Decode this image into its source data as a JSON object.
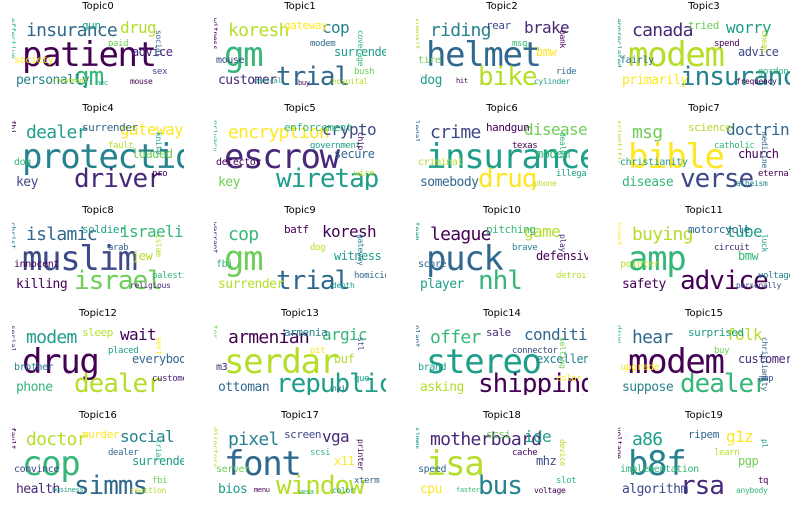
{
  "colors": [
    "#440154",
    "#482878",
    "#3e4989",
    "#31688e",
    "#26828e",
    "#1f9e89",
    "#35b779",
    "#6ece58",
    "#b5de2b",
    "#fde725"
  ],
  "topics": [
    {
      "title": "Topic0",
      "words": [
        "patient",
        "gm",
        "insurance",
        "drug",
        "personally",
        "advice",
        "gun",
        "society",
        "sex",
        "paid",
        "social",
        "effective",
        "mouse",
        "treatment",
        "nec"
      ]
    },
    {
      "title": "Topic1",
      "words": [
        "gm",
        "trial",
        "koresh",
        "cop",
        "customer",
        "surrender",
        "gateway",
        "mouse",
        "bush",
        "modem",
        "coverage",
        "witness",
        "hospital",
        "medical",
        "buy"
      ]
    },
    {
      "title": "Topic2",
      "words": [
        "helmet",
        "bike",
        "riding",
        "brake",
        "dog",
        "bmw",
        "rear",
        "tire",
        "ride",
        "msg",
        "bank",
        "sumgait",
        "cylinder",
        "hit"
      ]
    },
    {
      "title": "Topic3",
      "words": [
        "modem",
        "insurance",
        "canada",
        "worry",
        "primarily",
        "advice",
        "tried",
        "fairly",
        "gordon",
        "spend",
        "cheap",
        "appreciated",
        "frequency"
      ]
    },
    {
      "title": "Topic4",
      "words": [
        "protection",
        "driver",
        "dealer",
        "gateway",
        "key",
        "loaded",
        "surrender",
        "dog",
        "pro",
        "fault",
        "knife",
        "fbi"
      ]
    },
    {
      "title": "Topic5",
      "words": [
        "escrow",
        "wiretap",
        "encryption",
        "crypto",
        "key",
        "secure",
        "enforcement",
        "detector",
        "wire",
        "government",
        "chip",
        "privacy"
      ]
    },
    {
      "title": "Topic6",
      "words": [
        "insurance",
        "drug",
        "crime",
        "disease",
        "somebody",
        "modem",
        "handgun",
        "criminal",
        "illegal",
        "texas",
        "dealer",
        "legal",
        "phone"
      ]
    },
    {
      "title": "Topic7",
      "words": [
        "bible",
        "verse",
        "msg",
        "doctrine",
        "disease",
        "church",
        "science",
        "christianity",
        "eternal",
        "catholic",
        "medicine",
        "scientific",
        "atheism"
      ]
    },
    {
      "title": "Topic8",
      "words": [
        "muslim",
        "israel",
        "islamic",
        "israeli",
        "killing",
        "jew",
        "soldier",
        "innocent",
        "palestinian",
        "arab",
        "islam",
        "christ",
        "religious"
      ]
    },
    {
      "title": "Topic9",
      "words": [
        "gm",
        "trial",
        "cop",
        "koresh",
        "surrender",
        "witness",
        "batf",
        "fbi",
        "homicide",
        "dog",
        "gateway",
        "warrant",
        "depth"
      ]
    },
    {
      "title": "Topic10",
      "words": [
        "puck",
        "nhl",
        "league",
        "game",
        "player",
        "defensive",
        "pitching",
        "score",
        "detroit",
        "brave",
        "play",
        "team"
      ]
    },
    {
      "title": "Topic11",
      "words": [
        "amp",
        "advice",
        "buying",
        "tube",
        "safety",
        "bmw",
        "motorcycle",
        "pointer",
        "voltage",
        "circuit",
        "luck",
        "spend",
        "personally"
      ]
    },
    {
      "title": "Topic12",
      "words": [
        "drug",
        "dealer",
        "modem",
        "wait",
        "phone",
        "everybody",
        "sleep",
        "brother",
        "customer",
        "placed",
        "sort",
        "serial"
      ]
    },
    {
      "title": "Topic13",
      "words": [
        "serdar",
        "republic",
        "armenian",
        "argic",
        "ottoman",
        "buf",
        "armenia",
        "m3",
        "que",
        "pit",
        "stl",
        "tor",
        "nyi"
      ]
    },
    {
      "title": "Topic14",
      "words": [
        "stereo",
        "shipping",
        "offer",
        "condition",
        "asking",
        "excellent",
        "sale",
        "brand",
        "color",
        "connector",
        "selling",
        "plant"
      ]
    },
    {
      "title": "Topic15",
      "words": [
        "modem",
        "dealer",
        "hear",
        "folk",
        "suppose",
        "customer",
        "surprised",
        "upgrade",
        "amp",
        "buy",
        "christianity",
        "drug"
      ]
    },
    {
      "title": "Topic16",
      "words": [
        "cop",
        "simms",
        "doctor",
        "social",
        "health",
        "surrender",
        "murder",
        "convince",
        "fbi",
        "dealer",
        "trial",
        "fault",
        "reaction",
        "business"
      ]
    },
    {
      "title": "Topic17",
      "words": [
        "font",
        "window",
        "pixel",
        "vga",
        "bios",
        "x11",
        "screen",
        "server",
        "xterm",
        "scsi",
        "printer",
        "directory",
        "color",
        "menu",
        "vesa"
      ]
    },
    {
      "title": "Topic18",
      "words": [
        "isa",
        "bus",
        "motherboard",
        "ide",
        "cpu",
        "mhz",
        "scsi",
        "speed",
        "slot",
        "cache",
        "device",
        "simms",
        "voltage",
        "faster"
      ]
    },
    {
      "title": "Topic19",
      "words": [
        "b8f",
        "rsa",
        "a86",
        "g1z",
        "algorithm",
        "pgp",
        "ripem",
        "implementation",
        "tq",
        "learn",
        "pl",
        "voltage",
        "anybody"
      ]
    }
  ]
}
